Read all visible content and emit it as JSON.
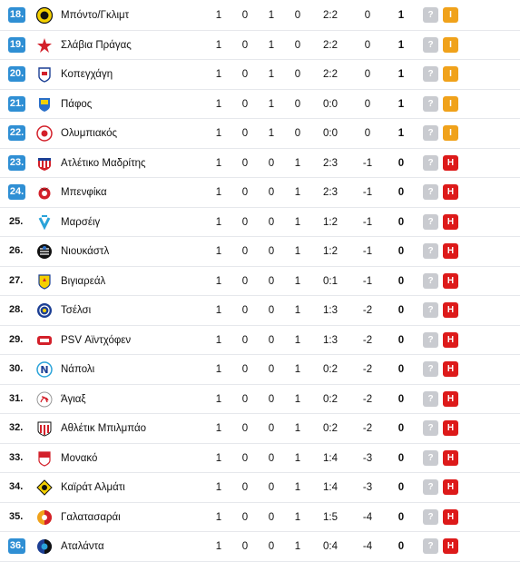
{
  "colors": {
    "rank_highlight": "#2f8fd4",
    "draw": "#f0a21b",
    "loss": "#dd1a1a",
    "unknown": "#c9cbd0"
  },
  "rows": [
    {
      "rank": "18.",
      "team": "Μπόντο/Γκλιμτ",
      "p": "1",
      "w": "0",
      "d": "1",
      "l": "0",
      "goals": "2:2",
      "gd": "0",
      "pts": "1",
      "q": "?",
      "form": "I",
      "logo": "bodo-glimt-crest-icon",
      "hl": true
    },
    {
      "rank": "19.",
      "team": "Σλάβια Πράγας",
      "p": "1",
      "w": "0",
      "d": "1",
      "l": "0",
      "goals": "2:2",
      "gd": "0",
      "pts": "1",
      "q": "?",
      "form": "I",
      "logo": "slavia-star-icon",
      "hl": true
    },
    {
      "rank": "20.",
      "team": "Κοπεγχάγη",
      "p": "1",
      "w": "0",
      "d": "1",
      "l": "0",
      "goals": "2:2",
      "gd": "0",
      "pts": "1",
      "q": "?",
      "form": "I",
      "logo": "copenhagen-crest-icon",
      "hl": true
    },
    {
      "rank": "21.",
      "team": "Πάφος",
      "p": "1",
      "w": "0",
      "d": "1",
      "l": "0",
      "goals": "0:0",
      "gd": "0",
      "pts": "1",
      "q": "?",
      "form": "I",
      "logo": "pafos-crest-icon",
      "hl": true
    },
    {
      "rank": "22.",
      "team": "Ολυμπιακός",
      "p": "1",
      "w": "0",
      "d": "1",
      "l": "0",
      "goals": "0:0",
      "gd": "0",
      "pts": "1",
      "q": "?",
      "form": "I",
      "logo": "olympiacos-crest-icon",
      "hl": true
    },
    {
      "rank": "23.",
      "team": "Ατλέτικο Μαδρίτης",
      "p": "1",
      "w": "0",
      "d": "0",
      "l": "1",
      "goals": "2:3",
      "gd": "-1",
      "pts": "0",
      "q": "?",
      "form": "H",
      "logo": "atletico-crest-icon",
      "hl": true
    },
    {
      "rank": "24.",
      "team": "Μπενφίκα",
      "p": "1",
      "w": "0",
      "d": "0",
      "l": "1",
      "goals": "2:3",
      "gd": "-1",
      "pts": "0",
      "q": "?",
      "form": "H",
      "logo": "benfica-crest-icon",
      "hl": true
    },
    {
      "rank": "25.",
      "team": "Μαρσέιγ",
      "p": "1",
      "w": "0",
      "d": "0",
      "l": "1",
      "goals": "1:2",
      "gd": "-1",
      "pts": "0",
      "q": "?",
      "form": "H",
      "logo": "marseille-crest-icon",
      "hl": false
    },
    {
      "rank": "26.",
      "team": "Νιουκάστλ",
      "p": "1",
      "w": "0",
      "d": "0",
      "l": "1",
      "goals": "1:2",
      "gd": "-1",
      "pts": "0",
      "q": "?",
      "form": "H",
      "logo": "newcastle-crest-icon",
      "hl": false
    },
    {
      "rank": "27.",
      "team": "Βιγιαρεάλ",
      "p": "1",
      "w": "0",
      "d": "0",
      "l": "1",
      "goals": "0:1",
      "gd": "-1",
      "pts": "0",
      "q": "?",
      "form": "H",
      "logo": "villarreal-crest-icon",
      "hl": false
    },
    {
      "rank": "28.",
      "team": "Τσέλσι",
      "p": "1",
      "w": "0",
      "d": "0",
      "l": "1",
      "goals": "1:3",
      "gd": "-2",
      "pts": "0",
      "q": "?",
      "form": "H",
      "logo": "chelsea-crest-icon",
      "hl": false
    },
    {
      "rank": "29.",
      "team": "PSV Αϊντχόφεν",
      "p": "1",
      "w": "0",
      "d": "0",
      "l": "1",
      "goals": "1:3",
      "gd": "-2",
      "pts": "0",
      "q": "?",
      "form": "H",
      "logo": "psv-crest-icon",
      "hl": false
    },
    {
      "rank": "30.",
      "team": "Νάπολι",
      "p": "1",
      "w": "0",
      "d": "0",
      "l": "1",
      "goals": "0:2",
      "gd": "-2",
      "pts": "0",
      "q": "?",
      "form": "H",
      "logo": "napoli-crest-icon",
      "hl": false
    },
    {
      "rank": "31.",
      "team": "Άγιαξ",
      "p": "1",
      "w": "0",
      "d": "0",
      "l": "1",
      "goals": "0:2",
      "gd": "-2",
      "pts": "0",
      "q": "?",
      "form": "H",
      "logo": "ajax-crest-icon",
      "hl": false
    },
    {
      "rank": "32.",
      "team": "Αθλέτικ Μπιλμπάο",
      "p": "1",
      "w": "0",
      "d": "0",
      "l": "1",
      "goals": "0:2",
      "gd": "-2",
      "pts": "0",
      "q": "?",
      "form": "H",
      "logo": "athletic-crest-icon",
      "hl": false
    },
    {
      "rank": "33.",
      "team": "Μονακό",
      "p": "1",
      "w": "0",
      "d": "0",
      "l": "1",
      "goals": "1:4",
      "gd": "-3",
      "pts": "0",
      "q": "?",
      "form": "H",
      "logo": "monaco-crest-icon",
      "hl": false
    },
    {
      "rank": "34.",
      "team": "Καϊράτ Αλμάτι",
      "p": "1",
      "w": "0",
      "d": "0",
      "l": "1",
      "goals": "1:4",
      "gd": "-3",
      "pts": "0",
      "q": "?",
      "form": "H",
      "logo": "kairat-crest-icon",
      "hl": false
    },
    {
      "rank": "35.",
      "team": "Γαλατασαράι",
      "p": "1",
      "w": "0",
      "d": "0",
      "l": "1",
      "goals": "1:5",
      "gd": "-4",
      "pts": "0",
      "q": "?",
      "form": "H",
      "logo": "galatasaray-crest-icon",
      "hl": false
    },
    {
      "rank": "36.",
      "team": "Αταλάντα",
      "p": "1",
      "w": "0",
      "d": "0",
      "l": "1",
      "goals": "0:4",
      "gd": "-4",
      "pts": "0",
      "q": "?",
      "form": "H",
      "logo": "atalanta-crest-icon",
      "hl": true
    }
  ]
}
